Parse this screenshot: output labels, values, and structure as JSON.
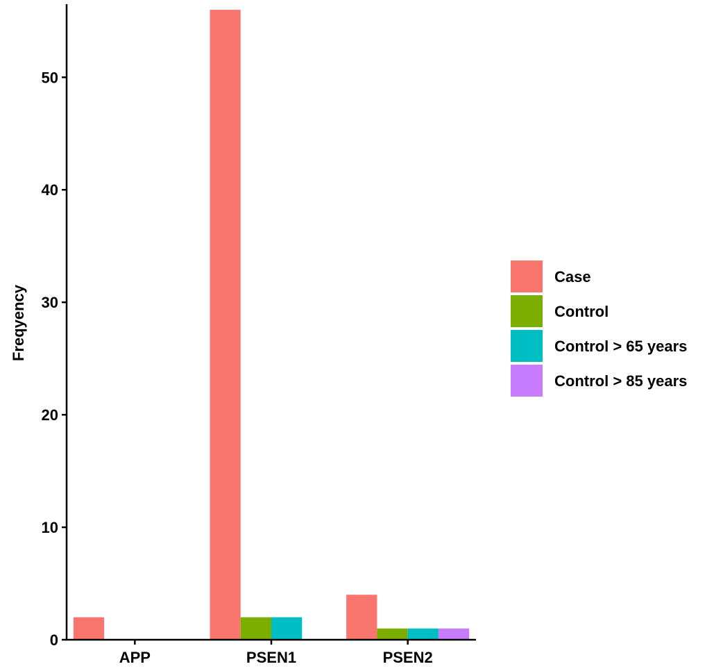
{
  "chart_data": {
    "type": "bar",
    "title": "",
    "xlabel": "",
    "ylabel": "Freqyency",
    "categories": [
      "APP",
      "PSEN1",
      "PSEN2"
    ],
    "series": [
      {
        "name": "Case",
        "color": "#F8766D",
        "values": [
          2,
          56,
          4
        ]
      },
      {
        "name": "Control",
        "color": "#7CAE00",
        "values": [
          0,
          2,
          1
        ]
      },
      {
        "name": "Control > 65 years",
        "color": "#00BFC4",
        "values": [
          0,
          2,
          1
        ]
      },
      {
        "name": "Control > 85 years",
        "color": "#C77CFF",
        "values": [
          0,
          0,
          1
        ]
      }
    ],
    "ylim": [
      0,
      56.5
    ],
    "yticks": [
      0,
      10,
      20,
      30,
      40,
      50
    ],
    "grid": false,
    "legend_position": "right"
  }
}
